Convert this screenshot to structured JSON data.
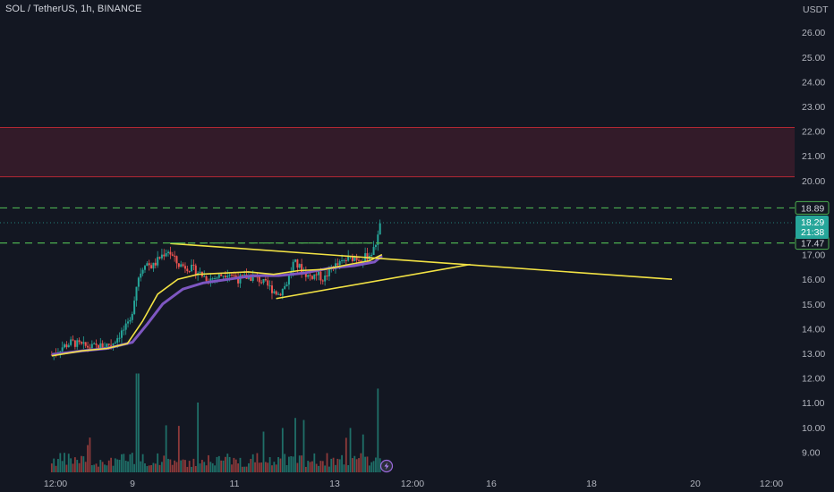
{
  "header": {
    "title": "SOL / TetherUS, 1h, BINANCE"
  },
  "colors": {
    "background": "#131722",
    "up": "#26a69a",
    "down": "#ef5350",
    "up_volume": "#1f6f68",
    "down_volume": "#8e3a3a",
    "ma_fast": "#f2e244",
    "ma_slow": "#7e57c2",
    "trendline": "#f2e244",
    "level_line": "#4caf50",
    "zone_fill": "#3a1c2a",
    "zone_border": "#b22833",
    "last_price_bg": "#26a69a"
  },
  "icons": {
    "lightning": "lightning-icon"
  },
  "chart_data": {
    "type": "candlestick",
    "symbol": "SOL / TetherUS",
    "interval": "1h",
    "exchange": "BINANCE",
    "y_axis": {
      "unit": "USDT",
      "ticks": [
        "26.00",
        "25.00",
        "24.00",
        "23.00",
        "22.00",
        "21.00",
        "20.00",
        "19.00",
        "18.00",
        "17.00",
        "16.00",
        "15.00",
        "14.00",
        "13.00",
        "12.00",
        "11.00",
        "10.00",
        "9.00"
      ],
      "range": [
        8.5,
        27.0
      ],
      "scale": "linear"
    },
    "x_axis": {
      "ticks": [
        "12:00",
        "9",
        "11",
        "13",
        "12:00",
        "16",
        "18",
        "20",
        "12:00"
      ]
    },
    "resistance_zone": {
      "low": 20.15,
      "high": 22.15
    },
    "horizontal_levels": [
      {
        "price": 18.89,
        "label": "18.89",
        "style": "dashed"
      },
      {
        "price": 17.47,
        "label": "17.47",
        "style": "dashed"
      }
    ],
    "triangle_top_level": {
      "price": 17.47
    },
    "last_price": {
      "price": "18.29",
      "countdown": "21:38"
    },
    "trendlines": [
      {
        "name": "upper",
        "from": [
          9.75,
          17.45
        ],
        "to": [
          19.7,
          16.0
        ]
      },
      {
        "name": "lower",
        "from": [
          11.85,
          15.22
        ],
        "to": [
          15.7,
          16.6
        ]
      }
    ],
    "price_points": [
      [
        7.4,
        12.95
      ],
      [
        7.6,
        13.25
      ],
      [
        7.8,
        13.45
      ],
      [
        8.0,
        13.3
      ],
      [
        8.2,
        13.25
      ],
      [
        8.4,
        13.3
      ],
      [
        8.6,
        13.4
      ],
      [
        8.8,
        13.9
      ],
      [
        8.95,
        14.2
      ],
      [
        9.1,
        16.0
      ],
      [
        9.25,
        16.7
      ],
      [
        9.4,
        16.5
      ],
      [
        9.55,
        16.9
      ],
      [
        9.7,
        17.2
      ],
      [
        9.9,
        16.6
      ],
      [
        10.1,
        16.5
      ],
      [
        10.3,
        16.3
      ],
      [
        10.5,
        16.0
      ],
      [
        10.7,
        16.1
      ],
      [
        10.9,
        16.3
      ],
      [
        11.1,
        16.0
      ],
      [
        11.3,
        16.1
      ],
      [
        11.5,
        16.0
      ],
      [
        11.7,
        15.7
      ],
      [
        11.9,
        15.4
      ],
      [
        12.05,
        15.8
      ],
      [
        12.2,
        16.7
      ],
      [
        12.35,
        16.4
      ],
      [
        12.5,
        16.1
      ],
      [
        12.65,
        16.2
      ],
      [
        12.8,
        16.0
      ],
      [
        12.95,
        16.5
      ],
      [
        13.1,
        16.6
      ],
      [
        13.25,
        16.8
      ],
      [
        13.4,
        16.9
      ],
      [
        13.55,
        16.8
      ],
      [
        13.7,
        17.0
      ],
      [
        13.8,
        17.2
      ],
      [
        13.88,
        18.05
      ],
      [
        13.95,
        18.29
      ]
    ],
    "ma_fast_points": [
      [
        7.4,
        12.9
      ],
      [
        8.0,
        13.1
      ],
      [
        8.5,
        13.2
      ],
      [
        8.9,
        13.4
      ],
      [
        9.2,
        14.3
      ],
      [
        9.5,
        15.4
      ],
      [
        9.9,
        16.0
      ],
      [
        10.3,
        16.2
      ],
      [
        10.8,
        16.25
      ],
      [
        11.3,
        16.3
      ],
      [
        11.8,
        16.2
      ],
      [
        12.3,
        16.35
      ],
      [
        12.8,
        16.4
      ],
      [
        13.3,
        16.6
      ],
      [
        13.7,
        16.75
      ],
      [
        13.95,
        17.0
      ]
    ],
    "ma_slow_points": [
      [
        7.4,
        12.95
      ],
      [
        8.0,
        13.1
      ],
      [
        8.5,
        13.2
      ],
      [
        9.0,
        13.45
      ],
      [
        9.3,
        14.2
      ],
      [
        9.6,
        15.0
      ],
      [
        10.0,
        15.6
      ],
      [
        10.4,
        15.85
      ],
      [
        10.9,
        16.0
      ],
      [
        11.4,
        16.15
      ],
      [
        11.9,
        16.15
      ],
      [
        12.4,
        16.25
      ],
      [
        12.9,
        16.45
      ],
      [
        13.4,
        16.55
      ],
      [
        13.8,
        16.7
      ],
      [
        13.95,
        16.95
      ]
    ],
    "volume_spikes": [
      {
        "x": 9.1,
        "height": 0.85
      },
      {
        "x": 10.3,
        "height": 0.6
      },
      {
        "x": 11.6,
        "height": 0.35
      },
      {
        "x": 12.4,
        "height": 0.45
      },
      {
        "x": 13.88,
        "height": 0.72
      }
    ]
  }
}
